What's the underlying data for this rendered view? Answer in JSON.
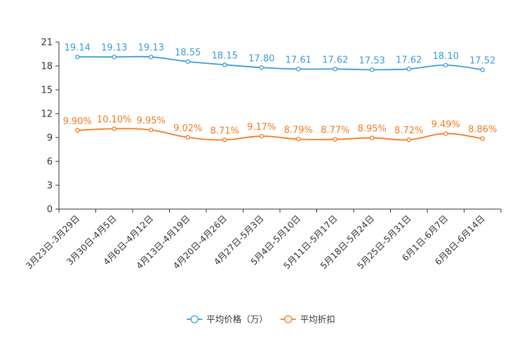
{
  "chart_data": {
    "type": "line",
    "title": "",
    "xlabel": "",
    "ylabel": "",
    "ylim": [
      0,
      21
    ],
    "yticks": [
      0,
      3,
      6,
      9,
      12,
      15,
      18,
      21
    ],
    "grid": false,
    "legend_position": "bottom",
    "categories": [
      "3月23日-3月29日",
      "3月30日-4月5日",
      "4月6日-4月12日",
      "4月13日-4月19日",
      "4月20日-4月26日",
      "4月27日-5月3日",
      "5月4日-5月10日",
      "5月11日-5月17日",
      "5月18日-5月24日",
      "5月25日-5月31日",
      "6月1日-6月7日",
      "6月8日-6月14日"
    ],
    "series": [
      {
        "name": "平均价格（万）",
        "color": "#3b9cd3",
        "values": [
          19.14,
          19.13,
          19.13,
          18.55,
          18.15,
          17.8,
          17.61,
          17.62,
          17.53,
          17.62,
          18.1,
          17.52
        ],
        "labels": [
          "19.14",
          "19.13",
          "19.13",
          "18.55",
          "18.15",
          "17.80",
          "17.61",
          "17.62",
          "17.53",
          "17.62",
          "18.10",
          "17.52"
        ]
      },
      {
        "name": "平均折扣",
        "color": "#f47920",
        "values": [
          9.9,
          10.1,
          9.95,
          9.02,
          8.71,
          9.17,
          8.79,
          8.77,
          8.95,
          8.72,
          9.49,
          8.86
        ],
        "labels": [
          "9.90%",
          "10.10%",
          "9.95%",
          "9.02%",
          "8.71%",
          "9.17%",
          "8.79%",
          "8.77%",
          "8.95%",
          "8.72%",
          "9.49%",
          "8.86%"
        ]
      }
    ]
  }
}
